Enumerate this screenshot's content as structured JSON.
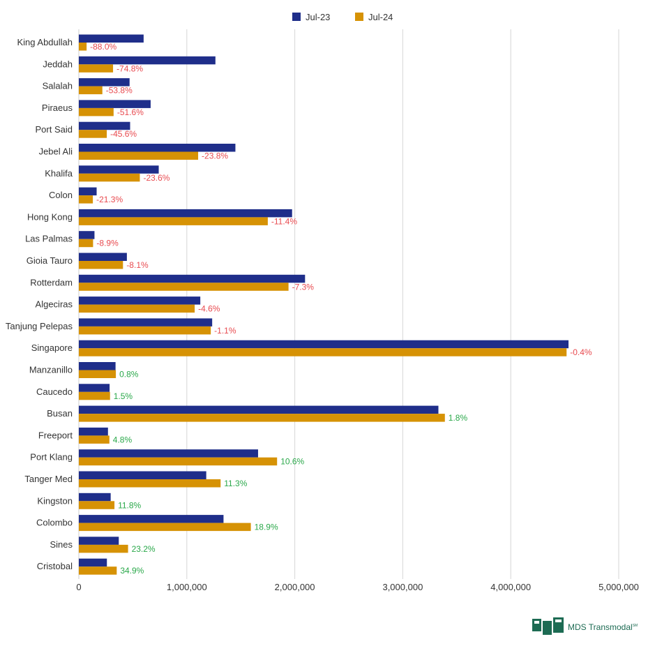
{
  "chart_data": {
    "type": "bar",
    "orientation": "horizontal",
    "categories": [
      "King Abdullah",
      "Jeddah",
      "Salalah",
      "Piraeus",
      "Port Said",
      "Jebel Ali",
      "Khalifa",
      "Colon",
      "Hong Kong",
      "Las Palmas",
      "Gioia Tauro",
      "Rotterdam",
      "Algeciras",
      "Tanjung Pelepas",
      "Singapore",
      "Manzanillo",
      "Caucedo",
      "Busan",
      "Freeport",
      "Port Klang",
      "Tanger Med",
      "Kingston",
      "Colombo",
      "Sines",
      "Cristobal"
    ],
    "series": [
      {
        "name": "Jul-23",
        "color": "#1f2e8a",
        "values": [
          600000,
          1265000,
          470000,
          665000,
          475000,
          1450000,
          740000,
          165000,
          1975000,
          145000,
          445000,
          2095000,
          1125000,
          1235000,
          4535000,
          340000,
          285000,
          3330000,
          270000,
          1660000,
          1180000,
          295000,
          1340000,
          370000,
          260000
        ]
      },
      {
        "name": "Jul-24",
        "color": "#d69205",
        "values": [
          72000,
          317000,
          218000,
          322000,
          259000,
          1105000,
          565000,
          130000,
          1750000,
          132000,
          409000,
          1942000,
          1073000,
          1222000,
          4517000,
          343000,
          289000,
          3390000,
          283000,
          1836000,
          1313000,
          330000,
          1593000,
          456000,
          351000
        ]
      }
    ],
    "pct_changes": [
      "-88.0%",
      "-74.8%",
      "-53.8%",
      "-51.6%",
      "-45.6%",
      "-23.8%",
      "-23.6%",
      "-21.3%",
      "-11.4%",
      "-8.9%",
      "-8.1%",
      "-7.3%",
      "-4.6%",
      "-1.1%",
      "-0.4%",
      "0.8%",
      "1.5%",
      "1.8%",
      "4.8%",
      "10.6%",
      "11.3%",
      "11.8%",
      "18.9%",
      "23.2%",
      "34.9%"
    ],
    "negative_color": "#e84a4f",
    "positive_color": "#2aa84a",
    "xlim": [
      0,
      5000000
    ],
    "xticks": [
      0,
      1000000,
      2000000,
      3000000,
      4000000,
      5000000
    ],
    "xtick_labels": [
      "0",
      "1,000,000",
      "2,000,000",
      "3,000,000",
      "4,000,000",
      "5,000,000"
    ],
    "grid": "vertical",
    "legend_position": "top-center",
    "title": "",
    "xlabel": "",
    "ylabel": ""
  },
  "logo": {
    "text": "MDS Transmodal",
    "mark": "SM",
    "color": "#1d6b53"
  }
}
